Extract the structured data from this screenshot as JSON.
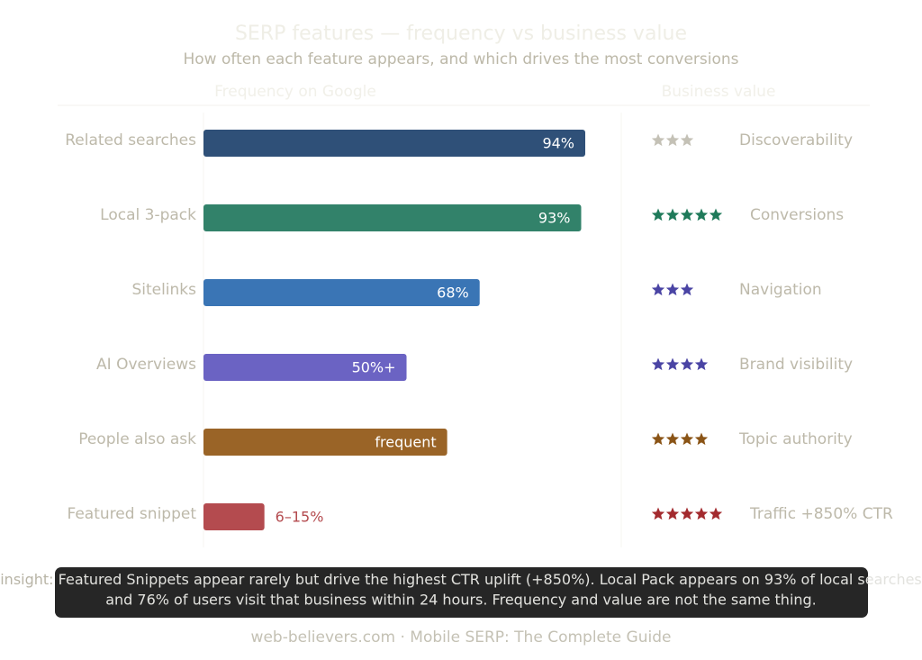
{
  "chart_data": {
    "type": "bar",
    "orientation": "horizontal",
    "title": "SERP features — frequency vs business value",
    "subtitle": "How often each feature appears, and which drives the most conversions",
    "left_header": "Frequency on Google",
    "right_header": "Business value",
    "categories": [
      "Related searches",
      "Local 3-pack",
      "Sitelinks",
      "AI Overviews",
      "People also ask",
      "Featured snippet"
    ],
    "values": [
      94,
      93,
      68,
      50,
      60,
      15
    ],
    "value_labels": [
      "94%",
      "93%",
      "68%",
      "50%+",
      "frequent",
      "6–15%"
    ],
    "colors": [
      "#2f5078",
      "#32826a",
      "#3a75b5",
      "#6b63c3",
      "#9a6427",
      "#b44b4f"
    ],
    "business_value": {
      "ratings": [
        3,
        5,
        3,
        4,
        4,
        5
      ],
      "star_colors": [
        "#c4c1b6",
        "#1f7a5a",
        "#4a44a4",
        "#4a44a4",
        "#8a5416",
        "#a32a2e"
      ],
      "labels": [
        "Discoverability",
        "Conversions",
        "Navigation",
        "Brand visibility",
        "Topic authority",
        "Traffic +850% CTR"
      ]
    },
    "insight": {
      "label": "insight:",
      "line1": "Featured Snippets appear rarely but drive the highest CTR uplift (+850%). Local Pack appears on 93% of local searches",
      "line2": "and 76% of users visit that business within 24 hours. Frequency and value are not the same thing."
    },
    "footer": "web-believers.com · Mobile SERP: The Complete Guide"
  }
}
